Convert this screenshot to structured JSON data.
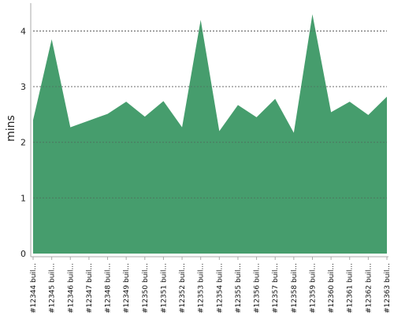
{
  "chart_data": {
    "type": "area",
    "title": "",
    "xlabel": "",
    "ylabel": "mins",
    "categories": [
      "#12344 buil...",
      "#12345 buil...",
      "#12346 buil...",
      "#12347 buil...",
      "#12348 buil...",
      "#12349 buil...",
      "#12350 buil...",
      "#12351 buil...",
      "#12352 buil...",
      "#12353 buil...",
      "#12354 buil...",
      "#12355 buil...",
      "#12356 buil...",
      "#12357 buil...",
      "#12358 buil...",
      "#12359 buil...",
      "#12360 buil...",
      "#12361 buil...",
      "#12362 buil...",
      "#12363 buil..."
    ],
    "series": [
      {
        "values": [
          2.4,
          3.85,
          2.27,
          2.39,
          2.51,
          2.73,
          2.46,
          2.74,
          2.27,
          4.2,
          2.2,
          2.67,
          2.45,
          2.78,
          2.17,
          4.3,
          2.54,
          2.73,
          2.49,
          2.82
        ]
      }
    ],
    "ylim": [
      0,
      4.5
    ],
    "yticks": [
      0,
      1,
      2,
      3,
      4
    ],
    "grid": true,
    "colors": {
      "fill": "#469d6d",
      "grid": "#555555",
      "axis": "#aaaaaa"
    }
  }
}
